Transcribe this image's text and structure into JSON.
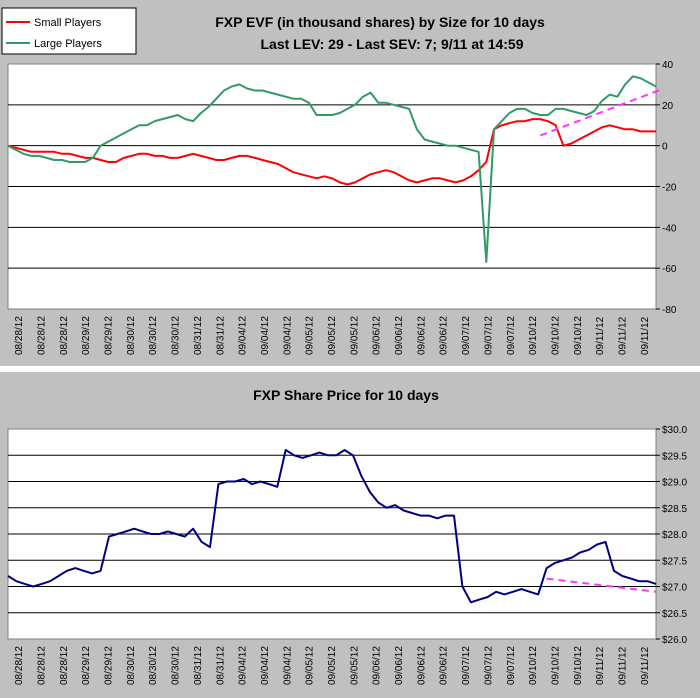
{
  "chart_data": [
    {
      "type": "line",
      "title": "FXP EVF (in thousand shares) by Size for 10 days",
      "subtitle": "Last LEV: 29 - Last SEV: 7; 9/11 at 14:59",
      "ylim": [
        -80,
        40
      ],
      "yticks": [
        "40",
        "20",
        "0",
        "-20",
        "-40",
        "-60",
        "-80"
      ],
      "x_tick_labels": [
        "08/28/12",
        "08/28/12",
        "08/28/12",
        "08/29/12",
        "08/29/12",
        "08/30/12",
        "08/30/12",
        "08/30/12",
        "08/31/12",
        "08/31/12",
        "09/04/12",
        "09/04/12",
        "09/04/12",
        "09/05/12",
        "09/05/12",
        "09/05/12",
        "09/06/12",
        "09/06/12",
        "09/06/12",
        "09/06/12",
        "09/07/12",
        "09/07/12",
        "09/07/12",
        "09/10/12",
        "09/10/12",
        "09/10/12",
        "09/11/12",
        "09/11/12",
        "09/11/12"
      ],
      "grid": "horizontal",
      "legend_position": "top-left",
      "series": [
        {
          "name": "Small Players",
          "color": "#ff0000",
          "values": [
            0,
            -1,
            -2,
            -3,
            -3,
            -3,
            -3,
            -4,
            -4,
            -5,
            -6,
            -6,
            -7,
            -8,
            -8,
            -6,
            -5,
            -4,
            -4,
            -5,
            -5,
            -6,
            -6,
            -5,
            -4,
            -5,
            -6,
            -7,
            -7,
            -6,
            -5,
            -5,
            -6,
            -7,
            -8,
            -9,
            -11,
            -13,
            -14,
            -15,
            -16,
            -15,
            -16,
            -18,
            -19,
            -18,
            -16,
            -14,
            -13,
            -12,
            -13,
            -15,
            -17,
            -18,
            -17,
            -16,
            -16,
            -17,
            -18,
            -17,
            -15,
            -12,
            -8,
            8,
            10,
            11,
            12,
            12,
            13,
            13,
            12,
            10,
            0,
            1,
            3,
            5,
            7,
            9,
            10,
            9,
            8,
            8,
            7,
            7,
            7
          ]
        },
        {
          "name": "Large Players",
          "color": "#339966",
          "values": [
            0,
            -2,
            -4,
            -5,
            -5,
            -6,
            -7,
            -7,
            -8,
            -8,
            -8,
            -6,
            0,
            2,
            4,
            6,
            8,
            10,
            10,
            12,
            13,
            14,
            15,
            13,
            12,
            16,
            19,
            23,
            27,
            29,
            30,
            28,
            27,
            27,
            26,
            25,
            24,
            23,
            23,
            21,
            15,
            15,
            15,
            16,
            18,
            20,
            24,
            26,
            21,
            21,
            20,
            19,
            18,
            8,
            3,
            2,
            1,
            0,
            0,
            -1,
            -2,
            -3,
            -57,
            8,
            12,
            16,
            18,
            18,
            16,
            15,
            15,
            18,
            18,
            17,
            16,
            15,
            17,
            22,
            25,
            24,
            30,
            34,
            33,
            31,
            29
          ]
        },
        {
          "name": "",
          "color": "#ff33ff",
          "style": "dashed",
          "points": [
            [
              69,
              5
            ],
            [
              85,
              28
            ]
          ]
        }
      ]
    },
    {
      "type": "line",
      "title": "FXP Share Price for 10 days",
      "ylim": [
        26.0,
        30.0
      ],
      "yticks": [
        "$30.0",
        "$29.5",
        "$29.0",
        "$28.5",
        "$28.0",
        "$27.5",
        "$27.0",
        "$26.5",
        "$26.0"
      ],
      "x_tick_labels": [
        "08/28/12",
        "08/28/12",
        "08/28/12",
        "08/29/12",
        "08/29/12",
        "08/30/12",
        "08/30/12",
        "08/30/12",
        "08/31/12",
        "08/31/12",
        "09/04/12",
        "09/04/12",
        "09/04/12",
        "09/05/12",
        "09/05/12",
        "09/05/12",
        "09/06/12",
        "09/06/12",
        "09/06/12",
        "09/06/12",
        "09/07/12",
        "09/07/12",
        "09/07/12",
        "09/10/12",
        "09/10/12",
        "09/10/12",
        "09/11/12",
        "09/11/12",
        "09/11/12"
      ],
      "grid": "horizontal",
      "series": [
        {
          "name": "",
          "color": "#000080",
          "values": [
            27.2,
            27.1,
            27.05,
            27.0,
            27.05,
            27.1,
            27.2,
            27.3,
            27.35,
            27.3,
            27.25,
            27.3,
            27.95,
            28.0,
            28.05,
            28.1,
            28.05,
            28.0,
            28.0,
            28.05,
            28.0,
            27.95,
            28.1,
            27.85,
            27.75,
            28.95,
            29.0,
            29.0,
            29.05,
            28.95,
            29.0,
            28.95,
            28.9,
            29.6,
            29.5,
            29.45,
            29.5,
            29.55,
            29.5,
            29.5,
            29.6,
            29.5,
            29.1,
            28.8,
            28.6,
            28.5,
            28.55,
            28.45,
            28.4,
            28.35,
            28.35,
            28.3,
            28.35,
            28.35,
            27.0,
            26.7,
            26.75,
            26.8,
            26.9,
            26.85,
            26.9,
            26.95,
            26.9,
            26.85,
            27.35,
            27.45,
            27.5,
            27.55,
            27.65,
            27.7,
            27.8,
            27.85,
            27.3,
            27.2,
            27.15,
            27.1,
            27.1,
            27.05
          ]
        },
        {
          "name": "",
          "color": "#ff33ff",
          "style": "dashed",
          "points": [
            [
              64,
              27.15
            ],
            [
              77,
              26.9
            ]
          ]
        }
      ]
    }
  ],
  "legend": {
    "small_label": "Small Players",
    "large_label": "Large Players"
  }
}
